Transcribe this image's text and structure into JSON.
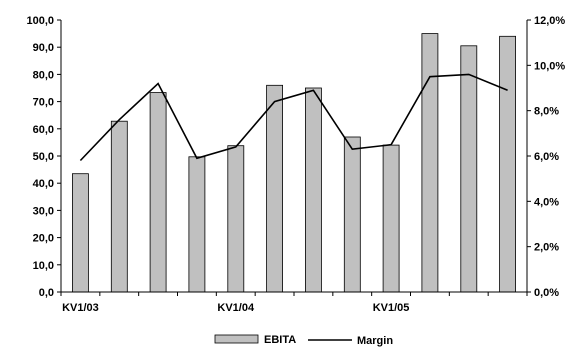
{
  "chart_data": {
    "type": "bar",
    "categories": [
      "KV1/03",
      "",
      "",
      "",
      "KV1/04",
      "",
      "",
      "",
      "KV1/05",
      "",
      "",
      ""
    ],
    "series": [
      {
        "name": "EBITA",
        "type": "bar",
        "axis": "left",
        "values": [
          43.5,
          62.8,
          73.3,
          49.7,
          53.8,
          76.0,
          75.0,
          57.0,
          54.0,
          95.0,
          90.5,
          94.0
        ]
      },
      {
        "name": "Margin",
        "type": "line",
        "axis": "right",
        "values": [
          5.8,
          7.6,
          9.2,
          5.9,
          6.4,
          8.4,
          8.9,
          6.3,
          6.5,
          9.5,
          9.6,
          8.9
        ]
      }
    ],
    "left_axis": {
      "range": [
        0,
        100
      ],
      "ticks": [
        0,
        10,
        20,
        30,
        40,
        50,
        60,
        70,
        80,
        90,
        100
      ],
      "tick_labels": [
        "0,0",
        "10,0",
        "20,0",
        "30,0",
        "40,0",
        "50,0",
        "60,0",
        "70,0",
        "80,0",
        "90,0",
        "100,0"
      ]
    },
    "right_axis": {
      "range": [
        0,
        12
      ],
      "ticks": [
        0,
        2,
        4,
        6,
        8,
        10,
        12
      ],
      "tick_labels": [
        "0,0%",
        "2,0%",
        "4,0%",
        "6,0%",
        "8,0%",
        "10,0%",
        "12,0%"
      ]
    },
    "grid": false,
    "legend": {
      "position": "bottom",
      "items": [
        "EBITA",
        "Margin"
      ]
    },
    "colors": {
      "bar_fill": "#c0c0c0",
      "bar_stroke": "#000000",
      "line": "#000000",
      "axis": "#000000"
    }
  }
}
